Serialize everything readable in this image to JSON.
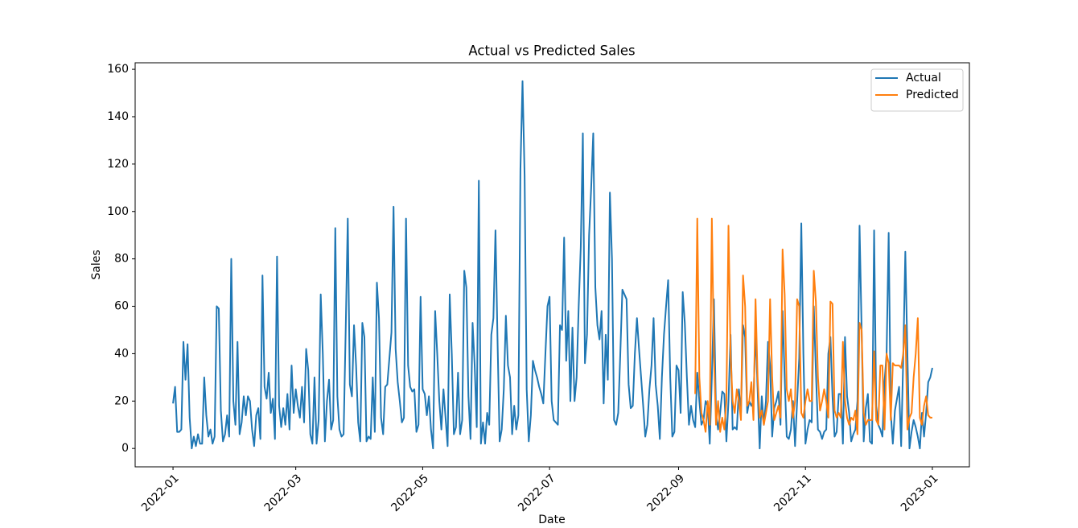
{
  "chart_data": {
    "type": "line",
    "title": "Actual vs Predicted Sales",
    "x_label": "Date",
    "y_label": "Sales",
    "xlim": [
      -18.2,
      382.8
    ],
    "xticks": [
      {
        "value": 0,
        "label": "2022-01"
      },
      {
        "value": 59,
        "label": "2022-03"
      },
      {
        "value": 120,
        "label": "2022-05"
      },
      {
        "value": 181,
        "label": "2022-07"
      },
      {
        "value": 243,
        "label": "2022-09"
      },
      {
        "value": 304,
        "label": "2022-11"
      },
      {
        "value": 365,
        "label": "2023-01"
      }
    ],
    "ylim": [
      -7.75,
      162.75
    ],
    "yticks": [
      0,
      20,
      40,
      60,
      80,
      100,
      120,
      140,
      160
    ],
    "legend": "upper right",
    "series": [
      {
        "name": "Actual",
        "color": "#1f77b4",
        "values": [
          19,
          26,
          7,
          7,
          8,
          45,
          29,
          44,
          13,
          0,
          5,
          1,
          6,
          2,
          2,
          30,
          14,
          5,
          8,
          2,
          5,
          60,
          59,
          16,
          3,
          6,
          14,
          5,
          80,
          20,
          10,
          45,
          6,
          11,
          22,
          14,
          22,
          20,
          8,
          1,
          14,
          17,
          4,
          73,
          26,
          21,
          32,
          15,
          21,
          4,
          81,
          18,
          9,
          17,
          10,
          23,
          8,
          35,
          15,
          25,
          18,
          13,
          26,
          11,
          42,
          33,
          6,
          2,
          30,
          2,
          12,
          65,
          40,
          3,
          20,
          29,
          8,
          12,
          93,
          22,
          8,
          5,
          6,
          50,
          97,
          27,
          22,
          52,
          35,
          11,
          3,
          53,
          47,
          3,
          5,
          4,
          30,
          7,
          70,
          55,
          13,
          6,
          26,
          27,
          38,
          49,
          102,
          42,
          28,
          20,
          11,
          13,
          97,
          35,
          26,
          24,
          25,
          7,
          10,
          64,
          25,
          23,
          14,
          22,
          8,
          0,
          58,
          40,
          20,
          8,
          25,
          13,
          1,
          65,
          40,
          6,
          9,
          32,
          6,
          12,
          75,
          68,
          22,
          4,
          53,
          35,
          9,
          113,
          2,
          11,
          2,
          15,
          10,
          48,
          55,
          92,
          45,
          3,
          8,
          25,
          56,
          35,
          30,
          6,
          18,
          8,
          14,
          118,
          155,
          115,
          25,
          3,
          14,
          37,
          33,
          30,
          26,
          23,
          19,
          40,
          60,
          64,
          20,
          12,
          11,
          10,
          52,
          50,
          89,
          37,
          58,
          20,
          51,
          20,
          30,
          60,
          85,
          133,
          36,
          48,
          90,
          110,
          133,
          68,
          52,
          46,
          58,
          19,
          48,
          29,
          108,
          80,
          12,
          10,
          15,
          40,
          67,
          65,
          63,
          27,
          17,
          18,
          40,
          55,
          42,
          30,
          18,
          5,
          10,
          25,
          35,
          55,
          27,
          18,
          4,
          30,
          48,
          60,
          71,
          30,
          5,
          7,
          35,
          33,
          15,
          66,
          53,
          30,
          10,
          18,
          12,
          9,
          32,
          20,
          10,
          12,
          20,
          18,
          2,
          30,
          63,
          15,
          8,
          15,
          24,
          23,
          3,
          20,
          48,
          8,
          9,
          8,
          25,
          15,
          52,
          47,
          15,
          20,
          18,
          20,
          50,
          25,
          0,
          22,
          10,
          20,
          45,
          35,
          5,
          17,
          20,
          24,
          10,
          58,
          30,
          5,
          4,
          8,
          20,
          1,
          20,
          38,
          95,
          40,
          2,
          8,
          12,
          11,
          60,
          33,
          8,
          7,
          4,
          7,
          8,
          40,
          47,
          22,
          5,
          7,
          23,
          23,
          2,
          47,
          22,
          15,
          3,
          6,
          8,
          20,
          94,
          50,
          3,
          17,
          23,
          3,
          2,
          92,
          18,
          10,
          8,
          5,
          28,
          40,
          91,
          15,
          2,
          16,
          21,
          26,
          1,
          38,
          83,
          40,
          0,
          7,
          12,
          9,
          5,
          0,
          15,
          5,
          15,
          28,
          30,
          34
        ]
      },
      {
        "name": "Predicted",
        "color": "#ff7f0e",
        "values": [
          null,
          null,
          null,
          null,
          null,
          null,
          null,
          null,
          null,
          null,
          null,
          null,
          null,
          null,
          null,
          null,
          null,
          null,
          null,
          null,
          null,
          null,
          null,
          null,
          null,
          null,
          null,
          null,
          null,
          null,
          null,
          null,
          null,
          null,
          null,
          null,
          null,
          null,
          null,
          null,
          null,
          null,
          null,
          null,
          null,
          null,
          null,
          null,
          null,
          null,
          null,
          null,
          null,
          null,
          null,
          null,
          null,
          null,
          null,
          null,
          null,
          null,
          null,
          null,
          null,
          null,
          null,
          null,
          null,
          null,
          null,
          null,
          null,
          null,
          null,
          null,
          null,
          null,
          null,
          null,
          null,
          null,
          null,
          null,
          null,
          null,
          null,
          null,
          null,
          null,
          null,
          null,
          null,
          null,
          null,
          null,
          null,
          null,
          null,
          null,
          null,
          null,
          null,
          null,
          null,
          null,
          null,
          null,
          null,
          null,
          null,
          null,
          null,
          null,
          null,
          null,
          null,
          null,
          null,
          null,
          null,
          null,
          null,
          null,
          null,
          null,
          null,
          null,
          null,
          null,
          null,
          null,
          null,
          null,
          null,
          null,
          null,
          null,
          null,
          null,
          null,
          null,
          null,
          null,
          null,
          null,
          null,
          null,
          null,
          null,
          null,
          null,
          null,
          null,
          null,
          null,
          null,
          null,
          null,
          null,
          null,
          null,
          null,
          null,
          null,
          null,
          null,
          null,
          null,
          null,
          null,
          null,
          null,
          null,
          null,
          null,
          null,
          null,
          null,
          null,
          null,
          null,
          null,
          null,
          null,
          null,
          null,
          null,
          null,
          null,
          null,
          null,
          null,
          null,
          null,
          null,
          null,
          null,
          null,
          null,
          null,
          null,
          null,
          null,
          null,
          null,
          null,
          null,
          null,
          null,
          null,
          null,
          null,
          null,
          null,
          null,
          null,
          null,
          null,
          null,
          null,
          null,
          null,
          null,
          null,
          null,
          null,
          null,
          null,
          null,
          null,
          null,
          null,
          null,
          null,
          null,
          null,
          null,
          null,
          null,
          null,
          null,
          null,
          null,
          null,
          null,
          null,
          null,
          null,
          null,
          null,
          23,
          97,
          30,
          15,
          12,
          7,
          20,
          10,
          97,
          40,
          10,
          20,
          7,
          13,
          8,
          20,
          94,
          40,
          20,
          15,
          25,
          20,
          12,
          73,
          60,
          18,
          20,
          28,
          12,
          63,
          30,
          13,
          16,
          10,
          15,
          20,
          63,
          30,
          12,
          15,
          18,
          13,
          84,
          65,
          25,
          20,
          25,
          13,
          20,
          63,
          60,
          15,
          13,
          20,
          25,
          20,
          20,
          75,
          62,
          30,
          16,
          20,
          25,
          20,
          13,
          62,
          61,
          16,
          13,
          15,
          13,
          45,
          20,
          13,
          10,
          13,
          12,
          16,
          6,
          53,
          50,
          15,
          10,
          12,
          12,
          12,
          41,
          12,
          10,
          35,
          35,
          8,
          40,
          36,
          12,
          36,
          35,
          35,
          35,
          34,
          40,
          52,
          8,
          13,
          15,
          30,
          40,
          55,
          13,
          10,
          18,
          22,
          14,
          13,
          13
        ]
      }
    ]
  }
}
